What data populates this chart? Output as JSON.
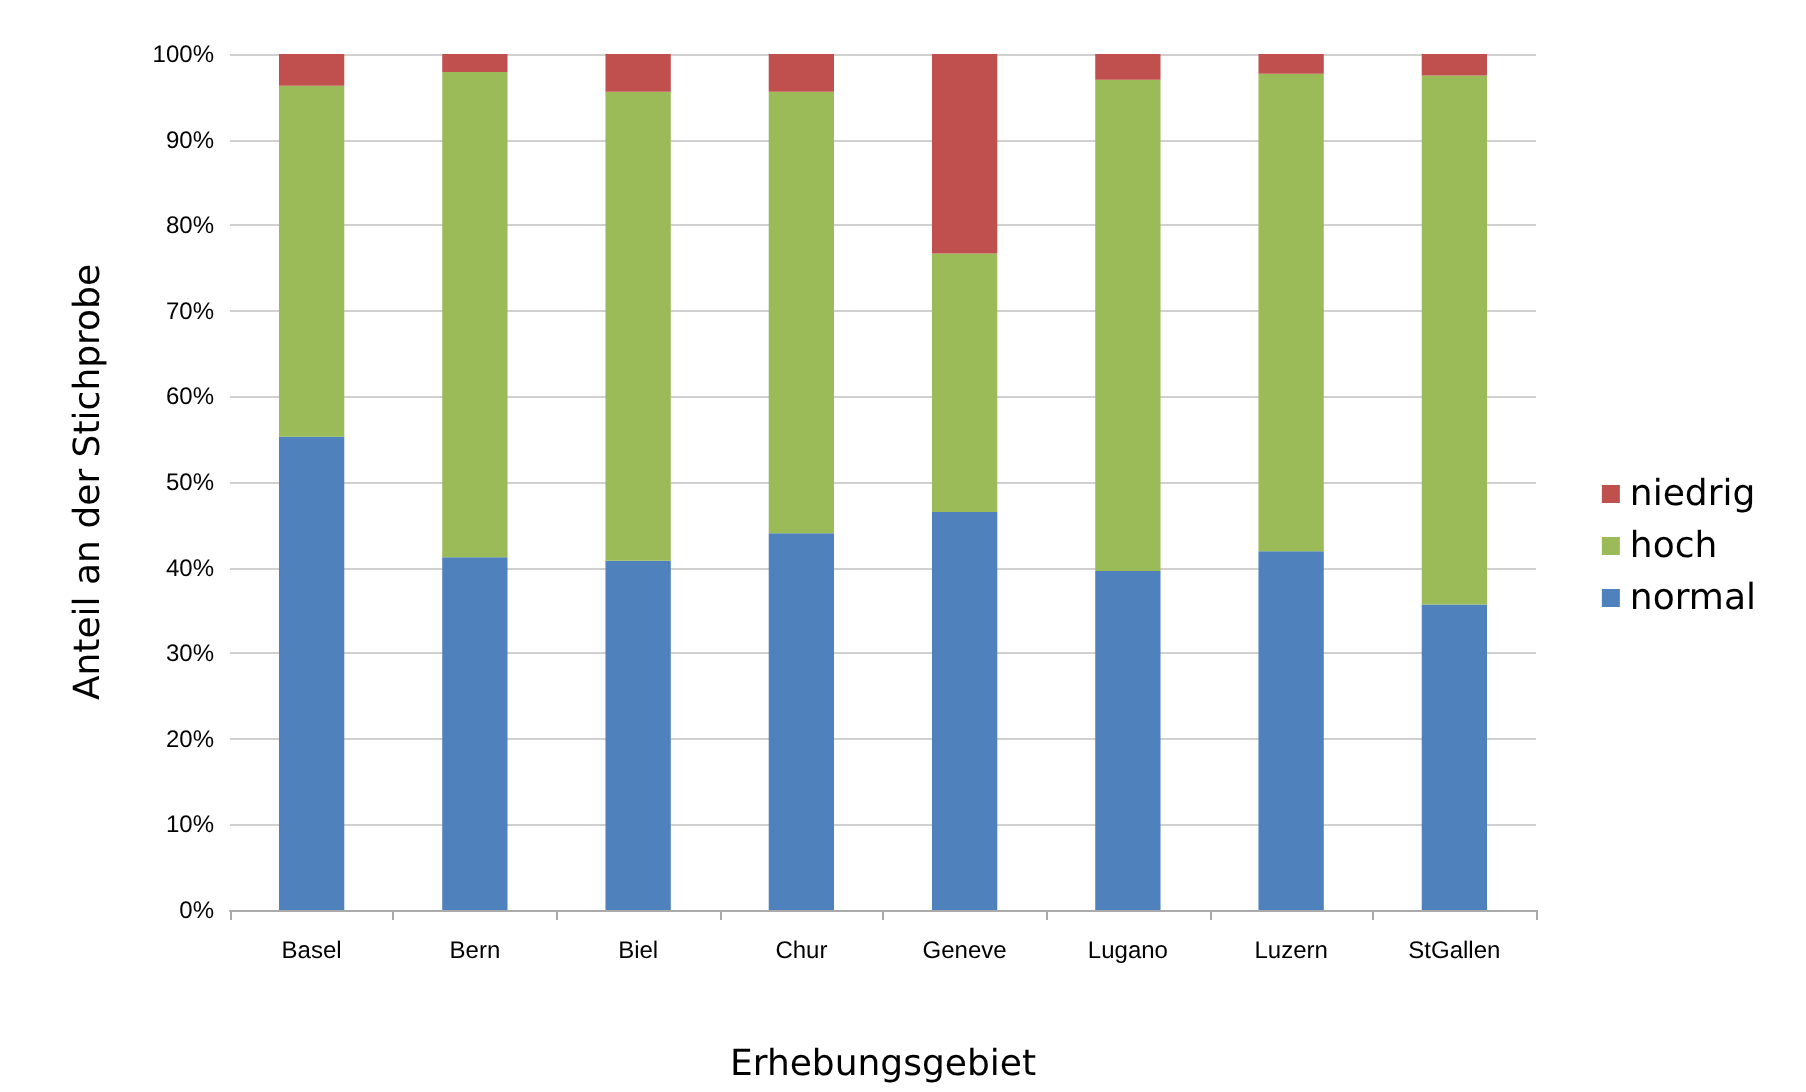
{
  "chart_data": {
    "type": "bar",
    "stacked": true,
    "xlabel": "Erhebungsgebiet",
    "ylabel": "Anteil an der Stichprobe",
    "categories": [
      "Basel",
      "Bern",
      "Biel",
      "Chur",
      "Geneve",
      "Lugano",
      "Luzern",
      "StGallen"
    ],
    "series": [
      {
        "name": "normal",
        "color": "#4f81bd",
        "values": [
          55.3,
          41.2,
          40.8,
          44.0,
          46.5,
          39.6,
          41.9,
          35.7
        ]
      },
      {
        "name": "hoch",
        "color": "#9bbb59",
        "values": [
          41.0,
          56.7,
          54.8,
          51.6,
          30.2,
          57.4,
          55.8,
          61.8
        ]
      },
      {
        "name": "niedrig",
        "color": "#c0504d",
        "values": [
          3.7,
          2.1,
          4.4,
          4.4,
          23.3,
          3.0,
          2.3,
          2.5
        ]
      }
    ],
    "ylim": [
      0,
      100
    ],
    "yticks": [
      {
        "value": 0,
        "label": "0%"
      },
      {
        "value": 10,
        "label": "10%"
      },
      {
        "value": 20,
        "label": "20%"
      },
      {
        "value": 30,
        "label": "30%"
      },
      {
        "value": 40,
        "label": "40%"
      },
      {
        "value": 50,
        "label": "50%"
      },
      {
        "value": 60,
        "label": "60%"
      },
      {
        "value": 70,
        "label": "70%"
      },
      {
        "value": 80,
        "label": "80%"
      },
      {
        "value": 90,
        "label": "90%"
      },
      {
        "value": 100,
        "label": "100%"
      }
    ],
    "grid": "y",
    "legend": "right"
  }
}
